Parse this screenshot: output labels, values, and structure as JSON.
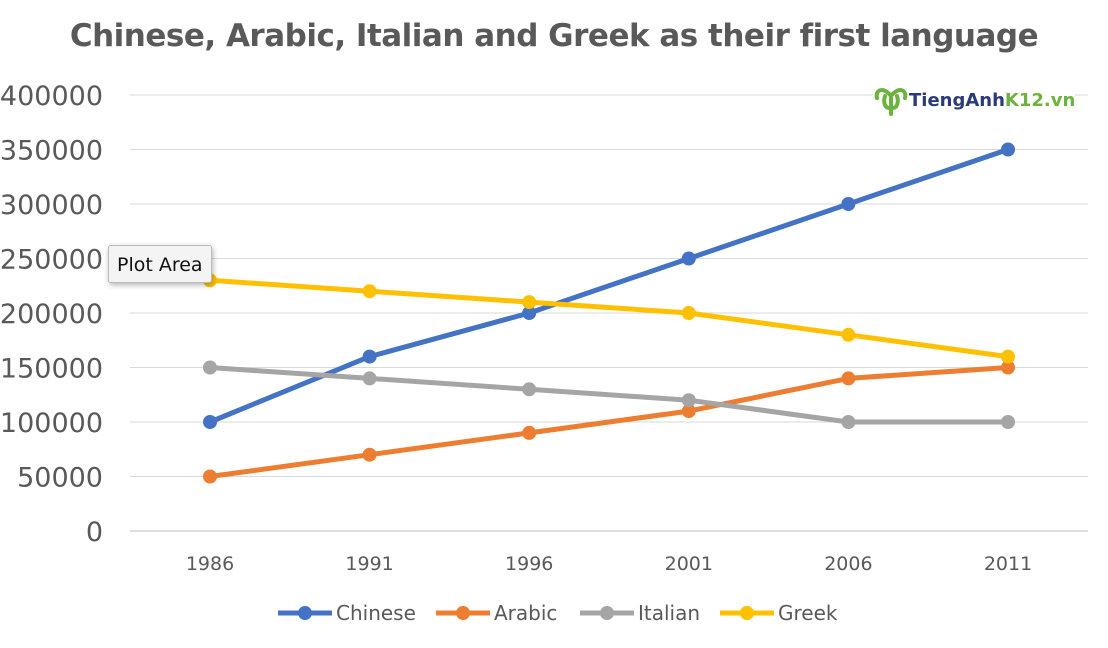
{
  "chart_data": {
    "type": "line",
    "title": "Chinese, Arabic, Italian and Greek as their first language",
    "categories": [
      "1986",
      "1991",
      "1996",
      "2001",
      "2006",
      "2011"
    ],
    "ylim": [
      0,
      400000
    ],
    "yticks": [
      "0",
      "50000",
      "100000",
      "150000",
      "200000",
      "250000",
      "300000",
      "350000",
      "400000"
    ],
    "grid": true,
    "legend_position": "bottom",
    "series": [
      {
        "name": "Chinese",
        "color": "#4472C4",
        "values": [
          100000,
          160000,
          200000,
          250000,
          300000,
          350000
        ]
      },
      {
        "name": "Arabic",
        "color": "#ED7D31",
        "values": [
          50000,
          70000,
          90000,
          110000,
          140000,
          150000
        ]
      },
      {
        "name": "Italian",
        "color": "#A5A5A5",
        "values": [
          150000,
          140000,
          130000,
          120000,
          100000,
          100000
        ]
      },
      {
        "name": "Greek",
        "color": "#FFC000",
        "values": [
          230000,
          220000,
          210000,
          200000,
          180000,
          160000
        ]
      }
    ]
  },
  "tooltip": "Plot Area",
  "logo": {
    "part1": "TiengAnh",
    "part2": "K12.vn"
  }
}
